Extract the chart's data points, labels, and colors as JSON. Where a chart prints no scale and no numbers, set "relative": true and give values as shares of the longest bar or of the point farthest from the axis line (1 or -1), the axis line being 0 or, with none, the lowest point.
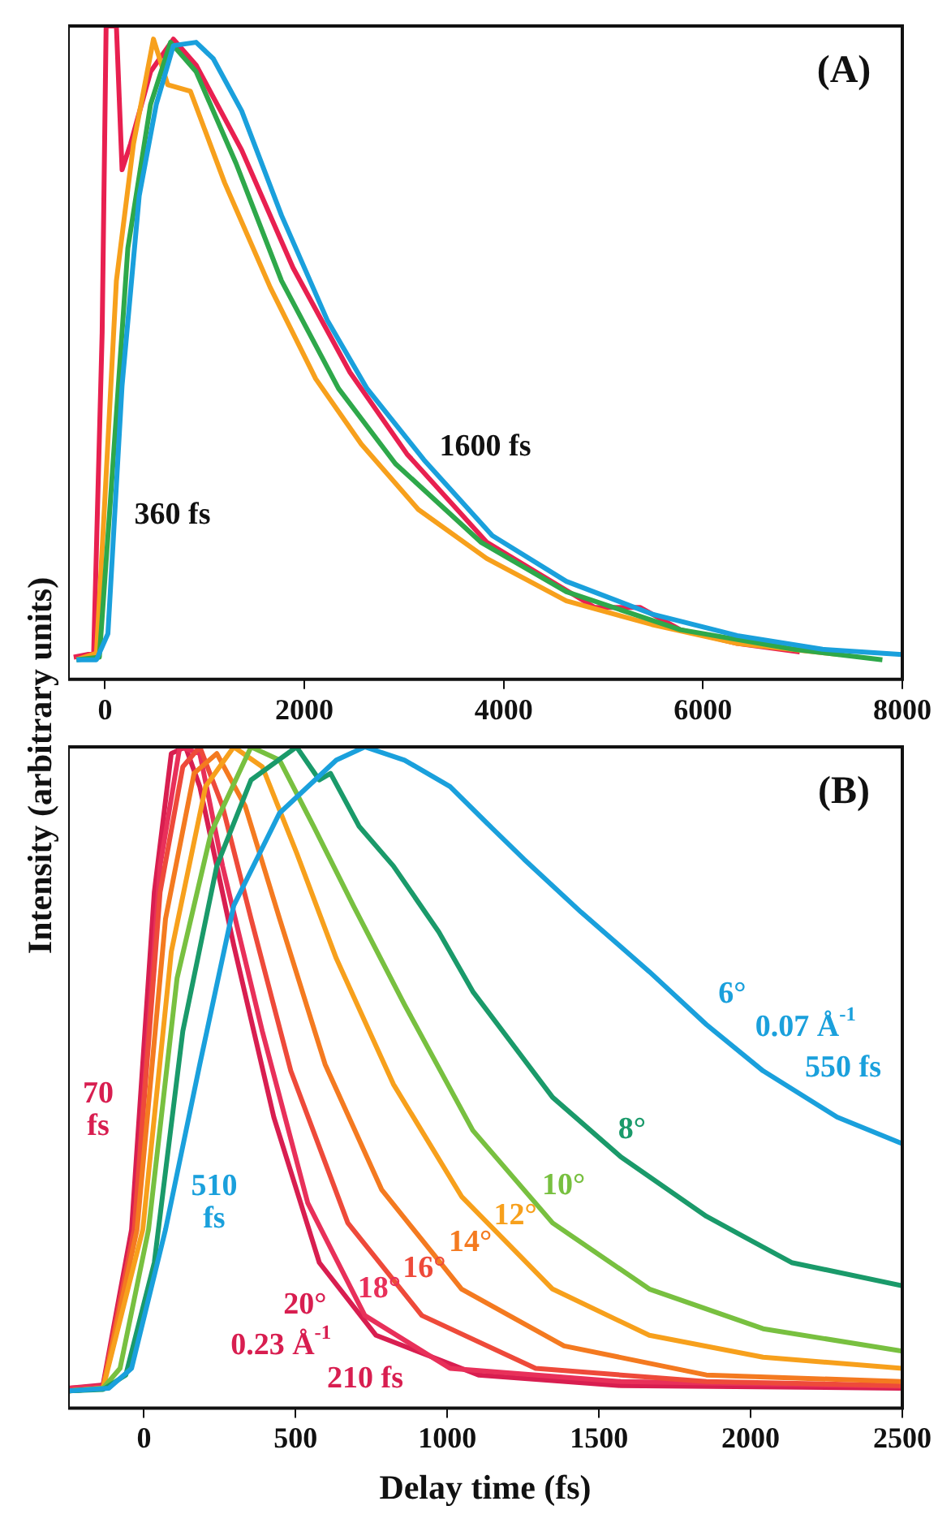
{
  "chart_data": [
    {
      "type": "line",
      "relative": true,
      "ylabel": "Intensity (arbitrary units)",
      "xlim": [
        -370,
        8000
      ],
      "xticks": [
        0,
        2000,
        4000,
        6000,
        8000
      ],
      "tick_labels": "x",
      "series": [
        {
          "color": "#1aa0dc",
          "x": [
            -286,
            -86,
            29,
            171,
            343,
            514,
            686,
            914,
            1086,
            1371,
            1771,
            2229,
            2629,
            3200,
            3886,
            4629,
            5486,
            6343,
            7200,
            8000
          ],
          "values": [
            0.03,
            0.03,
            0.07,
            0.45,
            0.74,
            0.88,
            0.97,
            0.975,
            0.95,
            0.87,
            0.71,
            0.55,
            0.445,
            0.336,
            0.22,
            0.15,
            0.1,
            0.067,
            0.046,
            0.038
          ]
        },
        {
          "color": "#2ea84a",
          "x": [
            -286,
            -57,
            57,
            229,
            457,
            657,
            914,
            1314,
            1771,
            2343,
            2914,
            3771,
            4629,
            5771,
            6914,
            7800
          ],
          "values": [
            0.03,
            0.034,
            0.28,
            0.66,
            0.88,
            0.975,
            0.93,
            0.79,
            0.61,
            0.445,
            0.33,
            0.21,
            0.134,
            0.076,
            0.046,
            0.03
          ]
        },
        {
          "color": "#f7a01c",
          "x": [
            -286,
            -86,
            0,
            114,
            286,
            486,
            629,
            857,
            1200,
            1657,
            2114,
            2571,
            3143,
            3829,
            4629,
            5486,
            6343,
            7371
          ],
          "values": [
            0.03,
            0.04,
            0.28,
            0.61,
            0.82,
            0.98,
            0.91,
            0.9,
            0.76,
            0.6,
            0.46,
            0.36,
            0.26,
            0.185,
            0.12,
            0.084,
            0.055,
            0.038
          ]
        },
        {
          "color": "#e82050",
          "x": [
            -314,
            -114,
            -29,
            11,
            114,
            171,
            257,
            457,
            686,
            914,
            1371,
            1886,
            2457,
            3029,
            3829,
            4914,
            5371,
            5771,
            6343,
            6971
          ],
          "values": [
            0.034,
            0.04,
            0.53,
            1.0,
            1.0,
            0.78,
            0.82,
            0.93,
            0.98,
            0.94,
            0.81,
            0.63,
            0.47,
            0.345,
            0.21,
            0.11,
            0.11,
            0.076,
            0.055,
            0.042
          ]
        }
      ],
      "annotations": [
        "(A)",
        "1600 fs",
        "360 fs"
      ]
    },
    {
      "type": "line",
      "relative": true,
      "xlabel": "Delay time (fs)",
      "xlim": [
        -250,
        2500
      ],
      "xticks": [
        0,
        500,
        1000,
        1500,
        2000,
        2500
      ],
      "tick_labels": "x",
      "series": [
        {
          "name": "6°",
          "color": "#1aa0dc",
          "x": [
            -248,
            -116,
            -41,
            71,
            184,
            296,
            447,
            634,
            728,
            859,
            1009,
            1141,
            1253,
            1441,
            1666,
            1854,
            2041,
            2285,
            2500
          ],
          "values": [
            0.026,
            0.03,
            0.06,
            0.27,
            0.52,
            0.76,
            0.9,
            0.98,
            1.0,
            0.98,
            0.94,
            0.88,
            0.83,
            0.75,
            0.66,
            0.58,
            0.51,
            0.44,
            0.4
          ]
        },
        {
          "name": "8°",
          "color": "#1a9a6a",
          "x": [
            -248,
            -135,
            -60,
            34,
            128,
            240,
            353,
            503,
            578,
            615,
            709,
            822,
            972,
            1084,
            1347,
            1572,
            1854,
            2135,
            2500
          ],
          "values": [
            0.026,
            0.028,
            0.05,
            0.22,
            0.57,
            0.82,
            0.95,
            1.0,
            0.95,
            0.96,
            0.88,
            0.82,
            0.72,
            0.63,
            0.47,
            0.38,
            0.29,
            0.22,
            0.185
          ]
        },
        {
          "name": "10°",
          "color": "#78c040",
          "x": [
            -248,
            -135,
            -79,
            15,
            109,
            221,
            353,
            447,
            559,
            690,
            859,
            1084,
            1347,
            1666,
            2041,
            2500
          ],
          "values": [
            0.026,
            0.03,
            0.06,
            0.27,
            0.65,
            0.87,
            1.0,
            0.98,
            0.88,
            0.76,
            0.61,
            0.42,
            0.28,
            0.18,
            0.12,
            0.086
          ]
        },
        {
          "name": "12°",
          "color": "#f7a01c",
          "x": [
            -248,
            -135,
            -4,
            90,
            203,
            296,
            390,
            503,
            634,
            822,
            1047,
            1347,
            1666,
            2041,
            2500
          ],
          "values": [
            0.026,
            0.03,
            0.27,
            0.69,
            0.94,
            1.0,
            0.97,
            0.84,
            0.68,
            0.49,
            0.32,
            0.18,
            0.11,
            0.077,
            0.06
          ]
        },
        {
          "name": "14°",
          "color": "#f47a20",
          "x": [
            -248,
            -135,
            -23,
            71,
            165,
            240,
            334,
            447,
            597,
            784,
            1047,
            1385,
            1854,
            2500
          ],
          "values": [
            0.026,
            0.03,
            0.27,
            0.74,
            0.96,
            0.99,
            0.91,
            0.74,
            0.52,
            0.33,
            0.18,
            0.094,
            0.05,
            0.04
          ]
        },
        {
          "name": "16°",
          "color": "#ee4a3a",
          "x": [
            -248,
            -135,
            -32,
            53,
            128,
            184,
            259,
            353,
            484,
            672,
            916,
            1291,
            1854,
            2500
          ],
          "values": [
            0.026,
            0.03,
            0.27,
            0.78,
            0.97,
            1.0,
            0.91,
            0.74,
            0.51,
            0.28,
            0.14,
            0.06,
            0.04,
            0.034
          ]
        },
        {
          "name": "18°",
          "color": "#e8305a",
          "x": [
            -248,
            -135,
            -32,
            53,
            118,
            184,
            259,
            390,
            540,
            728,
            1009,
            1572,
            2500
          ],
          "values": [
            0.03,
            0.033,
            0.27,
            0.82,
            1.0,
            0.99,
            0.82,
            0.57,
            0.31,
            0.14,
            0.06,
            0.04,
            0.033
          ]
        },
        {
          "name": "20°",
          "color": "#d81e50",
          "x": [
            -248,
            -135,
            -41,
            34,
            90,
            137,
            184,
            296,
            428,
            578,
            765,
            1103,
            1572,
            2500
          ],
          "values": [
            0.03,
            0.035,
            0.27,
            0.78,
            0.99,
            1.0,
            0.94,
            0.7,
            0.44,
            0.22,
            0.11,
            0.05,
            0.034,
            0.03
          ]
        }
      ],
      "annotations": [
        "(B)",
        "70\nfs",
        "510\nfs",
        "0.23 Å$^{-1}$",
        "210 fs",
        "0.07 Å$^{-1}$",
        "550 fs"
      ]
    }
  ]
}
